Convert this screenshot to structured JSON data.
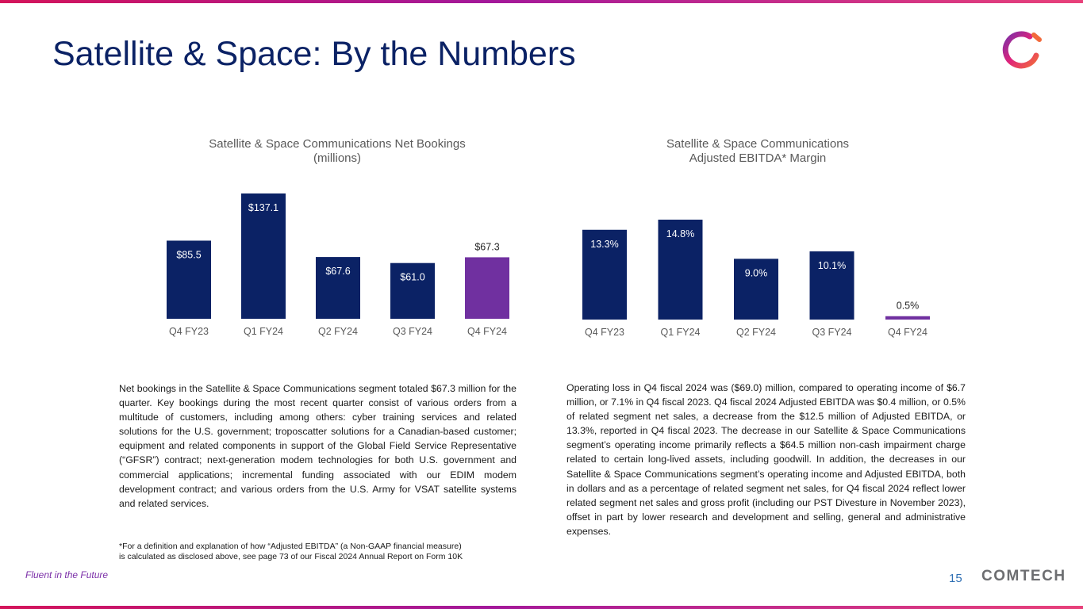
{
  "header": {
    "title": "Satellite & Space: By the Numbers"
  },
  "colors": {
    "navy": "#0b2265",
    "purple": "#7030a0",
    "title_blue": "#0b2265",
    "accent_pink": "#e8417a"
  },
  "icons": {
    "logo": "comtech-ring-logo"
  },
  "chart_data": [
    {
      "type": "bar",
      "title": "Satellite & Space Communications Net Bookings",
      "subtitle": "(millions)",
      "categories": [
        "Q4 FY23",
        "Q1 FY24",
        "Q2 FY24",
        "Q3 FY24",
        "Q4 FY24"
      ],
      "values": [
        85.5,
        137.1,
        67.6,
        61.0,
        67.3
      ],
      "labels": [
        "$85.5",
        "$137.1",
        "$67.6",
        "$61.0",
        "$67.3"
      ],
      "highlight_index": 4,
      "ylim": [
        0,
        137.1
      ]
    },
    {
      "type": "bar",
      "title": "Satellite & Space Communications",
      "subtitle": "Adjusted EBITDA* Margin",
      "categories": [
        "Q4 FY23",
        "Q1 FY24",
        "Q2 FY24",
        "Q3 FY24",
        "Q4 FY24"
      ],
      "values": [
        13.3,
        14.8,
        9.0,
        10.1,
        0.5
      ],
      "labels": [
        "13.3%",
        "14.8%",
        "9.0%",
        "10.1%",
        "0.5%"
      ],
      "highlight_index": 4,
      "ylim": [
        0,
        14.8
      ]
    }
  ],
  "body": {
    "left_paragraph": "Net bookings in the Satellite & Space Communications segment totaled $67.3 million for the quarter. Key bookings during the most recent quarter consist of various orders from a multitude of customers, including among others: cyber training services and related solutions for the U.S. government; troposcatter solutions for a Canadian-based customer; equipment and related components in support of the Global Field Service Representative (“GFSR”) contract; next-generation modem technologies for both U.S. government and commercial applications; incremental funding associated with our EDIM modem development contract; and various orders from the U.S. Army for VSAT satellite systems and related services.",
    "right_paragraph": "Operating loss in Q4 fiscal 2024 was ($69.0) million, compared to operating income of $6.7 million, or 7.1% in Q4 fiscal 2023. Q4 fiscal 2024 Adjusted EBITDA was $0.4 million, or 0.5% of related segment net sales, a decrease from the $12.5 million of Adjusted EBITDA, or 13.3%, reported in Q4 fiscal 2023. The decrease in our Satellite & Space Communications segment’s operating income primarily reflects a $64.5 million non-cash impairment charge related to certain long-lived assets, including goodwill. In addition, the decreases in our Satellite & Space Communications segment’s operating income and Adjusted EBITDA, both in dollars and as a percentage of related segment net sales, for Q4 fiscal 2024 reflect lower related segment net sales and gross profit (including our PST Divesture in November 2023), offset in part by lower research and development and selling, general and administrative expenses."
  },
  "footnote": {
    "line1": "*For a definition and explanation of how “Adjusted EBITDA” (a Non-GAAP financial measure)",
    "line2": "is calculated as disclosed above, see page 73 of our Fiscal 2024 Annual Report on Form 10K"
  },
  "footer": {
    "tagline": "Fluent in the Future",
    "page_number": "15",
    "brand": "COMTECH"
  }
}
